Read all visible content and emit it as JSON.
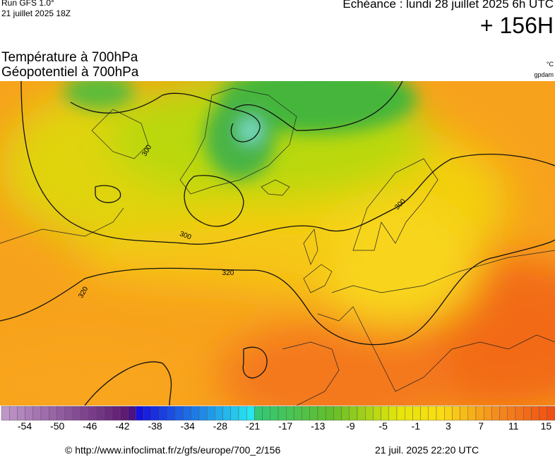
{
  "header": {
    "run": "Run GFS 1.0°",
    "run_date": "21 juillet 2025 18Z",
    "valid": "Echéance : lundi 28 juillet 2025 6h UTC",
    "lead": "+ 156H"
  },
  "fields": {
    "line1": "Température à 700hPa",
    "line2": "Géopotentiel à 700hPa",
    "unit1": "°C",
    "unit2": "gpdam"
  },
  "contour_labels": [
    "300",
    "300",
    "300",
    "320",
    "320"
  ],
  "scale": {
    "labels": [
      -54,
      -50,
      -46,
      -42,
      -38,
      -34,
      -28,
      -21,
      -17,
      -13,
      -9,
      -5,
      -1,
      3,
      7,
      11,
      15
    ]
  },
  "footer": {
    "source": "© http://www.infoclimat.fr/z/gfs/europe/700_2/156",
    "generated": "21 juil. 2025 22:20 UTC"
  }
}
